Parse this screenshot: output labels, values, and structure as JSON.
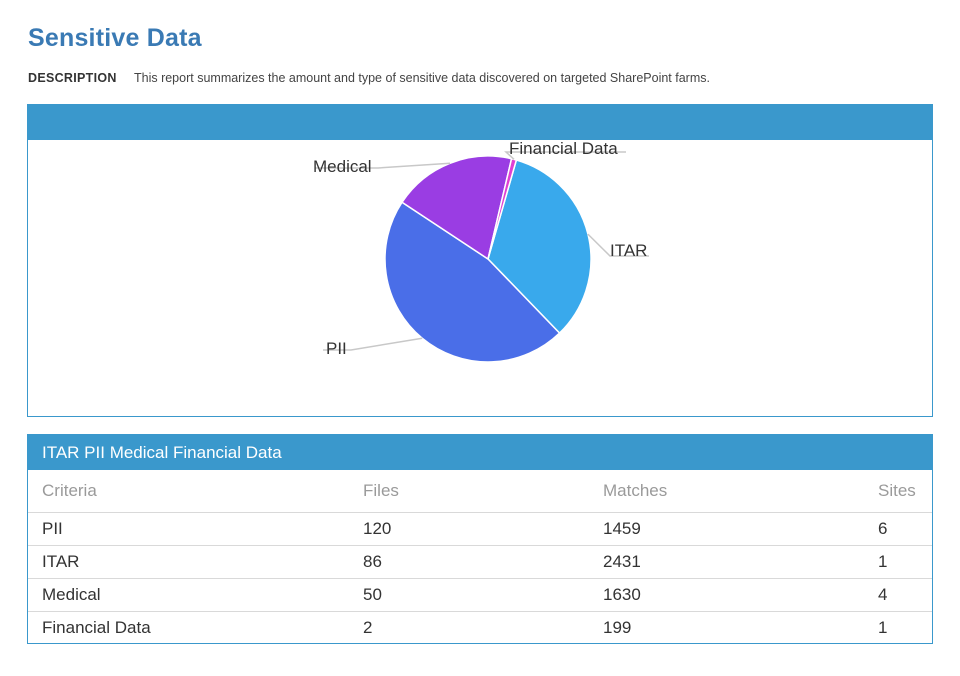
{
  "page": {
    "title": "Sensitive Data",
    "description_label": "DESCRIPTION",
    "description_text": "This report summarizes the amount and type of sensitive data discovered on targeted SharePoint farms."
  },
  "colors": {
    "accent": "#3a98cc",
    "title": "#3a7ab4"
  },
  "chart_data": {
    "type": "pie",
    "title": "",
    "slices": [
      {
        "label": "ITAR",
        "value": 86,
        "color": "#39a9ec"
      },
      {
        "label": "PII",
        "value": 120,
        "color": "#4a6ee8"
      },
      {
        "label": "Medical",
        "value": 50,
        "color": "#9a3de3"
      },
      {
        "label": "Financial Data",
        "value": 2,
        "color": "#df3fd3"
      }
    ]
  },
  "table": {
    "header_title": "ITAR PII Medical Financial Data",
    "columns": [
      "Criteria",
      "Files",
      "Matches",
      "Sites"
    ],
    "rows": [
      [
        "PII",
        "120",
        "1459",
        "6"
      ],
      [
        "ITAR",
        "86",
        "2431",
        "1"
      ],
      [
        "Medical",
        "50",
        "1630",
        "4"
      ],
      [
        "Financial Data",
        "2",
        "199",
        "1"
      ]
    ]
  }
}
